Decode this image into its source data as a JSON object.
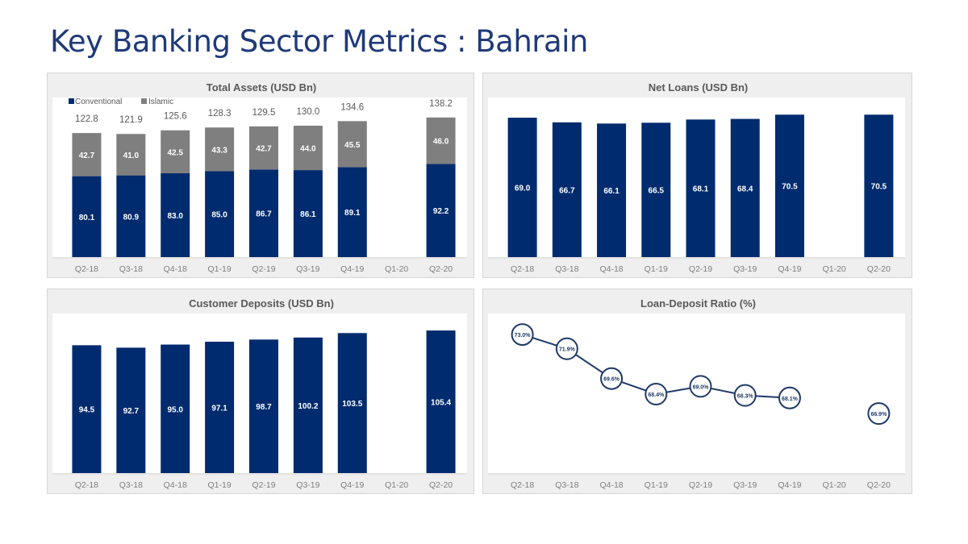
{
  "page_title": "Key Banking Sector Metrics : Bahrain",
  "colors": {
    "conventional": "#002b6e",
    "islamic": "#7f7f7f",
    "title": "#1f3a78"
  },
  "chart_data": [
    {
      "type": "bar",
      "stacked": true,
      "title": "Total Assets (USD Bn)",
      "categories": [
        "Q2-18",
        "Q3-18",
        "Q4-18",
        "Q1-19",
        "Q2-19",
        "Q3-19",
        "Q4-19",
        "Q1-20",
        "Q2-20"
      ],
      "series": [
        {
          "name": "Conventional",
          "values": [
            80.1,
            80.9,
            83.0,
            85.0,
            86.7,
            86.1,
            89.1,
            null,
            92.2
          ]
        },
        {
          "name": "Islamic",
          "values": [
            42.7,
            41.0,
            42.5,
            43.3,
            42.7,
            44.0,
            45.5,
            null,
            46.0
          ]
        }
      ],
      "totals": [
        "122.8",
        "121.9",
        "125.6",
        "128.3",
        "129.5",
        "130.0",
        "134.6",
        "",
        "138.2"
      ],
      "legend": "top-left",
      "ylim": [
        0,
        150
      ]
    },
    {
      "type": "bar",
      "title": "Net Loans (USD Bn)",
      "categories": [
        "Q2-18",
        "Q3-18",
        "Q4-18",
        "Q1-19",
        "Q2-19",
        "Q3-19",
        "Q4-19",
        "Q1-20",
        "Q2-20"
      ],
      "values": [
        69.0,
        66.7,
        66.1,
        66.5,
        68.1,
        68.4,
        70.5,
        null,
        70.5
      ],
      "ylim": [
        0,
        75
      ]
    },
    {
      "type": "bar",
      "title": "Customer Deposits (USD Bn)",
      "categories": [
        "Q2-18",
        "Q3-18",
        "Q4-18",
        "Q1-19",
        "Q2-19",
        "Q3-19",
        "Q4-19",
        "Q1-20",
        "Q2-20"
      ],
      "values": [
        94.5,
        92.7,
        95.0,
        97.1,
        98.7,
        100.2,
        103.5,
        null,
        105.4
      ],
      "ylim": [
        0,
        112
      ]
    },
    {
      "type": "line",
      "title": "Loan-Deposit Ratio (%)",
      "categories": [
        "Q2-18",
        "Q3-18",
        "Q4-18",
        "Q1-19",
        "Q2-19",
        "Q3-19",
        "Q4-19",
        "Q1-20",
        "Q2-20"
      ],
      "values": [
        73.0,
        71.9,
        69.6,
        68.4,
        69.0,
        68.3,
        68.1,
        null,
        66.9
      ],
      "labels": [
        "73.0%",
        "71.9%",
        "69.6%",
        "68.4%",
        "69.0%",
        "68.3%",
        "68.1%",
        "",
        "66.9%"
      ],
      "ylim": [
        62.3,
        74
      ]
    }
  ]
}
